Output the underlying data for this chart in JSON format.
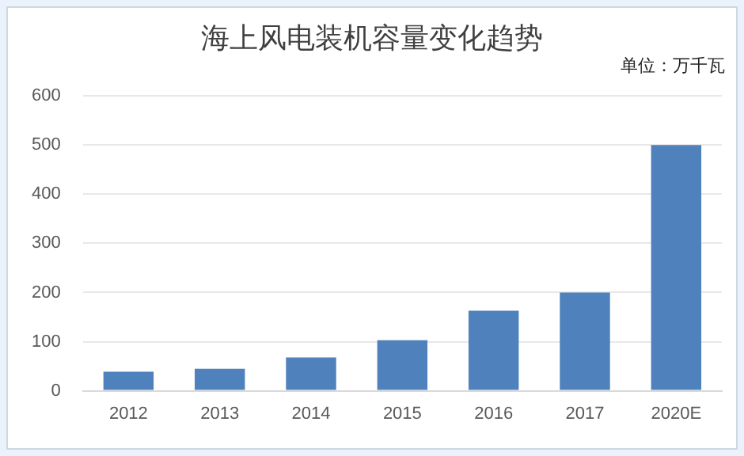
{
  "chart_data": {
    "type": "bar",
    "title": "海上风电装机容量变化趋势",
    "annotations": [
      "单位：万千瓦"
    ],
    "categories": [
      "2012",
      "2013",
      "2014",
      "2015",
      "2016",
      "2017",
      "2020E"
    ],
    "values": [
      39,
      45,
      68,
      103,
      163,
      200,
      500
    ],
    "color": "#4f81bd",
    "ylim": [
      0,
      600
    ],
    "yticks": [
      0,
      100,
      200,
      300,
      400,
      500,
      600
    ],
    "grid": "y",
    "legend": false
  }
}
